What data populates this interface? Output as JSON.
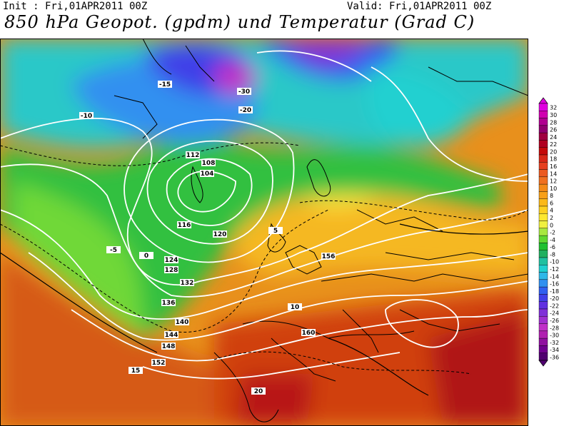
{
  "header": {
    "init": "Init : Fri,01APR2011  00Z",
    "valid": "Valid: Fri,01APR2011  00Z",
    "title": "850 hPa Geopot. (gpdm) und Temperatur (Grad C)"
  },
  "legend": {
    "unit_labels": [
      "32",
      "30",
      "28",
      "26",
      "24",
      "22",
      "20",
      "18",
      "16",
      "14",
      "12",
      "10",
      "8",
      "6",
      "4",
      "2",
      "0",
      "-2",
      "-4",
      "-6",
      "-8",
      "-10",
      "-12",
      "-14",
      "-16",
      "-18",
      "-20",
      "-22",
      "-24",
      "-26",
      "-28",
      "-30",
      "-32",
      "-34",
      "-36"
    ],
    "colors": [
      "#e000e0",
      "#d000b0",
      "#b00090",
      "#900070",
      "#a00040",
      "#b00020",
      "#c40a0a",
      "#d82818",
      "#e64020",
      "#ec5a20",
      "#f07020",
      "#f48a18",
      "#f8a018",
      "#fbb818",
      "#fdd020",
      "#fde830",
      "#f0f040",
      "#a8e840",
      "#60d830",
      "#20c030",
      "#20b060",
      "#20c0a0",
      "#20d0d0",
      "#30b8e8",
      "#3090f0",
      "#3060f0",
      "#4040e8",
      "#6030e0",
      "#8030d8",
      "#a030d0",
      "#c030c8",
      "#b020b0",
      "#9010a0",
      "#700090",
      "#500070"
    ]
  },
  "map": {
    "geopotential_labels": [
      "116",
      "120",
      "124",
      "128",
      "132",
      "136",
      "140",
      "144",
      "148",
      "152",
      "156",
      "160",
      "108",
      "104",
      "112"
    ],
    "temperature_labels": [
      "-30",
      "-20",
      "-15",
      "-10",
      "-5",
      "0",
      "5",
      "10",
      "15",
      "20"
    ]
  }
}
